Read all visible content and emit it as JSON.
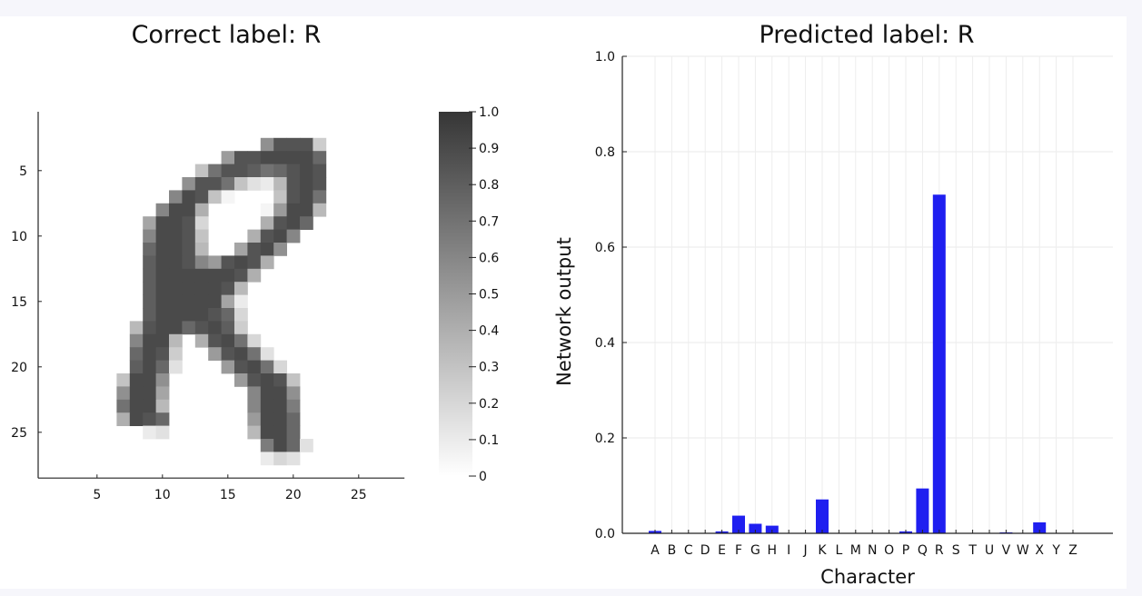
{
  "chart_data": [
    {
      "type": "heatmap",
      "title": "Correct label: R",
      "xticks": [
        5,
        10,
        15,
        20,
        25
      ],
      "yticks": [
        5,
        10,
        15,
        20,
        25
      ],
      "xlim": [
        0.5,
        28.5
      ],
      "ylim": [
        0.5,
        28.5
      ],
      "colormap": "grays (white = 0, black = 1)",
      "colorbar": {
        "ticks": [
          "1.0",
          "0.9",
          "0.8",
          "0.7",
          "0.6",
          "0.5",
          "0.4",
          "0.3",
          "0.2",
          "0.1",
          "0"
        ],
        "range": [
          0,
          1
        ]
      },
      "cells_note": "rows 1-28 top to bottom, columns 1-28 left to right; pixel intensity 0-1",
      "cells": {
        "3": [
          [
            18,
            0.55
          ],
          [
            19,
            0.85
          ],
          [
            20,
            0.85
          ],
          [
            21,
            0.85
          ],
          [
            22,
            0.25
          ]
        ],
        "4": [
          [
            15,
            0.5
          ],
          [
            16,
            0.85
          ],
          [
            17,
            0.85
          ],
          [
            18,
            0.9
          ],
          [
            19,
            0.9
          ],
          [
            20,
            0.9
          ],
          [
            21,
            0.9
          ],
          [
            22,
            0.75
          ]
        ],
        "5": [
          [
            13,
            0.3
          ],
          [
            14,
            0.7
          ],
          [
            15,
            0.85
          ],
          [
            16,
            0.85
          ],
          [
            17,
            0.8
          ],
          [
            18,
            0.7
          ],
          [
            19,
            0.75
          ],
          [
            20,
            0.85
          ],
          [
            21,
            0.9
          ],
          [
            22,
            0.85
          ]
        ],
        "6": [
          [
            12,
            0.55
          ],
          [
            13,
            0.85
          ],
          [
            14,
            0.85
          ],
          [
            15,
            0.7
          ],
          [
            16,
            0.3
          ],
          [
            17,
            0.15
          ],
          [
            18,
            0.1
          ],
          [
            19,
            0.35
          ],
          [
            20,
            0.85
          ],
          [
            21,
            0.9
          ],
          [
            22,
            0.85
          ]
        ],
        "7": [
          [
            11,
            0.6
          ],
          [
            12,
            0.9
          ],
          [
            13,
            0.85
          ],
          [
            14,
            0.3
          ],
          [
            15,
            0.05
          ],
          [
            19,
            0.3
          ],
          [
            20,
            0.85
          ],
          [
            21,
            0.9
          ],
          [
            22,
            0.7
          ]
        ],
        "8": [
          [
            10,
            0.6
          ],
          [
            11,
            0.9
          ],
          [
            12,
            0.9
          ],
          [
            13,
            0.4
          ],
          [
            18,
            0.05
          ],
          [
            19,
            0.5
          ],
          [
            20,
            0.9
          ],
          [
            21,
            0.9
          ],
          [
            22,
            0.35
          ]
        ],
        "9": [
          [
            9,
            0.45
          ],
          [
            10,
            0.9
          ],
          [
            11,
            0.9
          ],
          [
            12,
            0.85
          ],
          [
            13,
            0.2
          ],
          [
            18,
            0.4
          ],
          [
            19,
            0.85
          ],
          [
            20,
            0.9
          ],
          [
            21,
            0.75
          ]
        ],
        "10": [
          [
            9,
            0.6
          ],
          [
            10,
            0.9
          ],
          [
            11,
            0.9
          ],
          [
            12,
            0.85
          ],
          [
            13,
            0.3
          ],
          [
            17,
            0.4
          ],
          [
            18,
            0.85
          ],
          [
            19,
            0.9
          ],
          [
            20,
            0.6
          ]
        ],
        "11": [
          [
            9,
            0.75
          ],
          [
            10,
            0.9
          ],
          [
            11,
            0.9
          ],
          [
            12,
            0.85
          ],
          [
            13,
            0.35
          ],
          [
            16,
            0.45
          ],
          [
            17,
            0.85
          ],
          [
            18,
            0.9
          ],
          [
            19,
            0.55
          ]
        ],
        "12": [
          [
            9,
            0.8
          ],
          [
            10,
            0.9
          ],
          [
            11,
            0.9
          ],
          [
            12,
            0.85
          ],
          [
            13,
            0.6
          ],
          [
            14,
            0.5
          ],
          [
            15,
            0.85
          ],
          [
            16,
            0.9
          ],
          [
            17,
            0.85
          ],
          [
            18,
            0.4
          ]
        ],
        "13": [
          [
            9,
            0.8
          ],
          [
            10,
            0.9
          ],
          [
            11,
            0.9
          ],
          [
            12,
            0.9
          ],
          [
            13,
            0.9
          ],
          [
            14,
            0.9
          ],
          [
            15,
            0.9
          ],
          [
            16,
            0.85
          ],
          [
            17,
            0.4
          ]
        ],
        "14": [
          [
            9,
            0.8
          ],
          [
            10,
            0.9
          ],
          [
            11,
            0.9
          ],
          [
            12,
            0.9
          ],
          [
            13,
            0.9
          ],
          [
            14,
            0.9
          ],
          [
            15,
            0.85
          ],
          [
            16,
            0.35
          ]
        ],
        "15": [
          [
            9,
            0.8
          ],
          [
            10,
            0.9
          ],
          [
            11,
            0.9
          ],
          [
            12,
            0.9
          ],
          [
            13,
            0.9
          ],
          [
            14,
            0.9
          ],
          [
            15,
            0.45
          ],
          [
            16,
            0.1
          ]
        ],
        "16": [
          [
            9,
            0.8
          ],
          [
            10,
            0.9
          ],
          [
            11,
            0.9
          ],
          [
            12,
            0.9
          ],
          [
            13,
            0.9
          ],
          [
            14,
            0.85
          ],
          [
            15,
            0.75
          ],
          [
            16,
            0.2
          ]
        ],
        "17": [
          [
            8,
            0.35
          ],
          [
            9,
            0.85
          ],
          [
            10,
            0.9
          ],
          [
            11,
            0.9
          ],
          [
            12,
            0.75
          ],
          [
            13,
            0.85
          ],
          [
            14,
            0.9
          ],
          [
            15,
            0.8
          ],
          [
            16,
            0.25
          ]
        ],
        "18": [
          [
            8,
            0.6
          ],
          [
            9,
            0.9
          ],
          [
            10,
            0.9
          ],
          [
            11,
            0.35
          ],
          [
            13,
            0.4
          ],
          [
            14,
            0.85
          ],
          [
            15,
            0.9
          ],
          [
            16,
            0.7
          ],
          [
            17,
            0.2
          ]
        ],
        "19": [
          [
            8,
            0.75
          ],
          [
            9,
            0.9
          ],
          [
            10,
            0.85
          ],
          [
            11,
            0.25
          ],
          [
            14,
            0.5
          ],
          [
            15,
            0.85
          ],
          [
            16,
            0.9
          ],
          [
            17,
            0.7
          ],
          [
            18,
            0.15
          ]
        ],
        "20": [
          [
            8,
            0.8
          ],
          [
            9,
            0.9
          ],
          [
            10,
            0.75
          ],
          [
            11,
            0.15
          ],
          [
            15,
            0.5
          ],
          [
            16,
            0.85
          ],
          [
            17,
            0.9
          ],
          [
            18,
            0.7
          ],
          [
            19,
            0.2
          ]
        ],
        "21": [
          [
            7,
            0.3
          ],
          [
            8,
            0.9
          ],
          [
            9,
            0.9
          ],
          [
            10,
            0.55
          ],
          [
            16,
            0.5
          ],
          [
            17,
            0.85
          ],
          [
            18,
            0.9
          ],
          [
            19,
            0.85
          ],
          [
            20,
            0.3
          ]
        ],
        "22": [
          [
            7,
            0.55
          ],
          [
            8,
            0.9
          ],
          [
            9,
            0.9
          ],
          [
            10,
            0.45
          ],
          [
            17,
            0.6
          ],
          [
            18,
            0.9
          ],
          [
            19,
            0.9
          ],
          [
            20,
            0.55
          ]
        ],
        "23": [
          [
            7,
            0.7
          ],
          [
            8,
            0.9
          ],
          [
            9,
            0.9
          ],
          [
            10,
            0.35
          ],
          [
            17,
            0.6
          ],
          [
            18,
            0.9
          ],
          [
            19,
            0.9
          ],
          [
            20,
            0.65
          ]
        ],
        "24": [
          [
            7,
            0.4
          ],
          [
            8,
            0.9
          ],
          [
            9,
            0.85
          ],
          [
            10,
            0.75
          ],
          [
            17,
            0.5
          ],
          [
            18,
            0.9
          ],
          [
            19,
            0.9
          ],
          [
            20,
            0.75
          ]
        ],
        "25": [
          [
            9,
            0.1
          ],
          [
            10,
            0.15
          ],
          [
            17,
            0.35
          ],
          [
            18,
            0.9
          ],
          [
            19,
            0.9
          ],
          [
            20,
            0.75
          ]
        ],
        "26": [
          [
            18,
            0.65
          ],
          [
            19,
            0.9
          ],
          [
            20,
            0.75
          ],
          [
            21,
            0.15
          ]
        ],
        "27": [
          [
            18,
            0.1
          ],
          [
            19,
            0.2
          ],
          [
            20,
            0.15
          ]
        ]
      }
    },
    {
      "type": "bar",
      "title": "Predicted label: R",
      "xlabel": "Character",
      "ylabel": "Network output",
      "ylim": [
        0,
        1.0
      ],
      "yticks": [
        "0.0",
        "0.2",
        "0.4",
        "0.6",
        "0.8",
        "1.0"
      ],
      "grid": true,
      "color": "#1f1ff0",
      "categories": [
        "A",
        "B",
        "C",
        "D",
        "E",
        "F",
        "G",
        "H",
        "I",
        "J",
        "K",
        "L",
        "M",
        "N",
        "O",
        "P",
        "Q",
        "R",
        "S",
        "T",
        "U",
        "V",
        "W",
        "X",
        "Y",
        "Z"
      ],
      "values": [
        0.005,
        0.0,
        0.0,
        0.0,
        0.004,
        0.037,
        0.02,
        0.016,
        0.0,
        0.0,
        0.071,
        0.0,
        0.0,
        0.0,
        0.0,
        0.004,
        0.094,
        0.71,
        0.0,
        0.0,
        0.0,
        0.002,
        0.0,
        0.023,
        0.0,
        0.0
      ]
    }
  ]
}
